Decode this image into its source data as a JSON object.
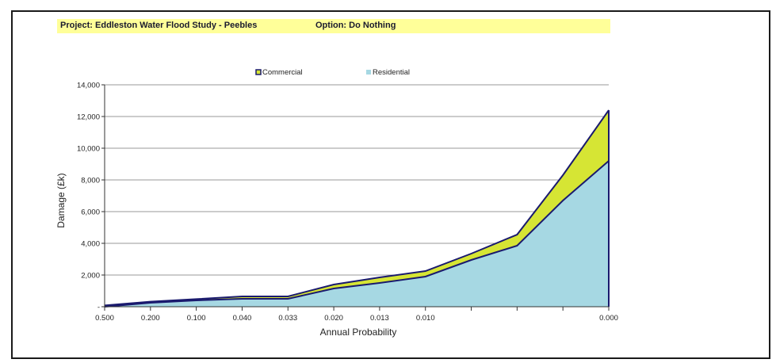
{
  "header": {
    "project": "Project: Eddleston Water Flood Study - Peebles",
    "option": "Option: Do Nothing"
  },
  "colors": {
    "banner": "#ffff99",
    "residential": "#a6d8e3",
    "commercial": "#d6e534",
    "outline": "#1a1a6e",
    "grid": "#9a9a9a"
  },
  "chart_data": {
    "type": "area",
    "stacked": true,
    "xlabel": "Annual Probability",
    "ylabel": "Damage (£k)",
    "categories": [
      "0.500",
      "0.200",
      "0.100",
      "0.040",
      "0.033",
      "0.020",
      "0.013",
      "0.010",
      "",
      "",
      "",
      "0.000"
    ],
    "series": [
      {
        "name": "Residential",
        "color": "#a6d8e3",
        "values": [
          0,
          250,
          400,
          500,
          500,
          1150,
          1500,
          1900,
          2950,
          3850,
          6700,
          9200
        ]
      },
      {
        "name": "Commercial",
        "color": "#d6e534",
        "values": [
          80,
          70,
          80,
          150,
          150,
          250,
          350,
          350,
          400,
          700,
          1600,
          3200
        ]
      }
    ],
    "ylim": [
      0,
      14000
    ],
    "yticks": [
      "-",
      "2,000",
      "4,000",
      "6,000",
      "8,000",
      "10,000",
      "12,000",
      "14,000"
    ],
    "legend": [
      "Commercial",
      "Residential"
    ],
    "legend_position": "top",
    "grid": true
  }
}
